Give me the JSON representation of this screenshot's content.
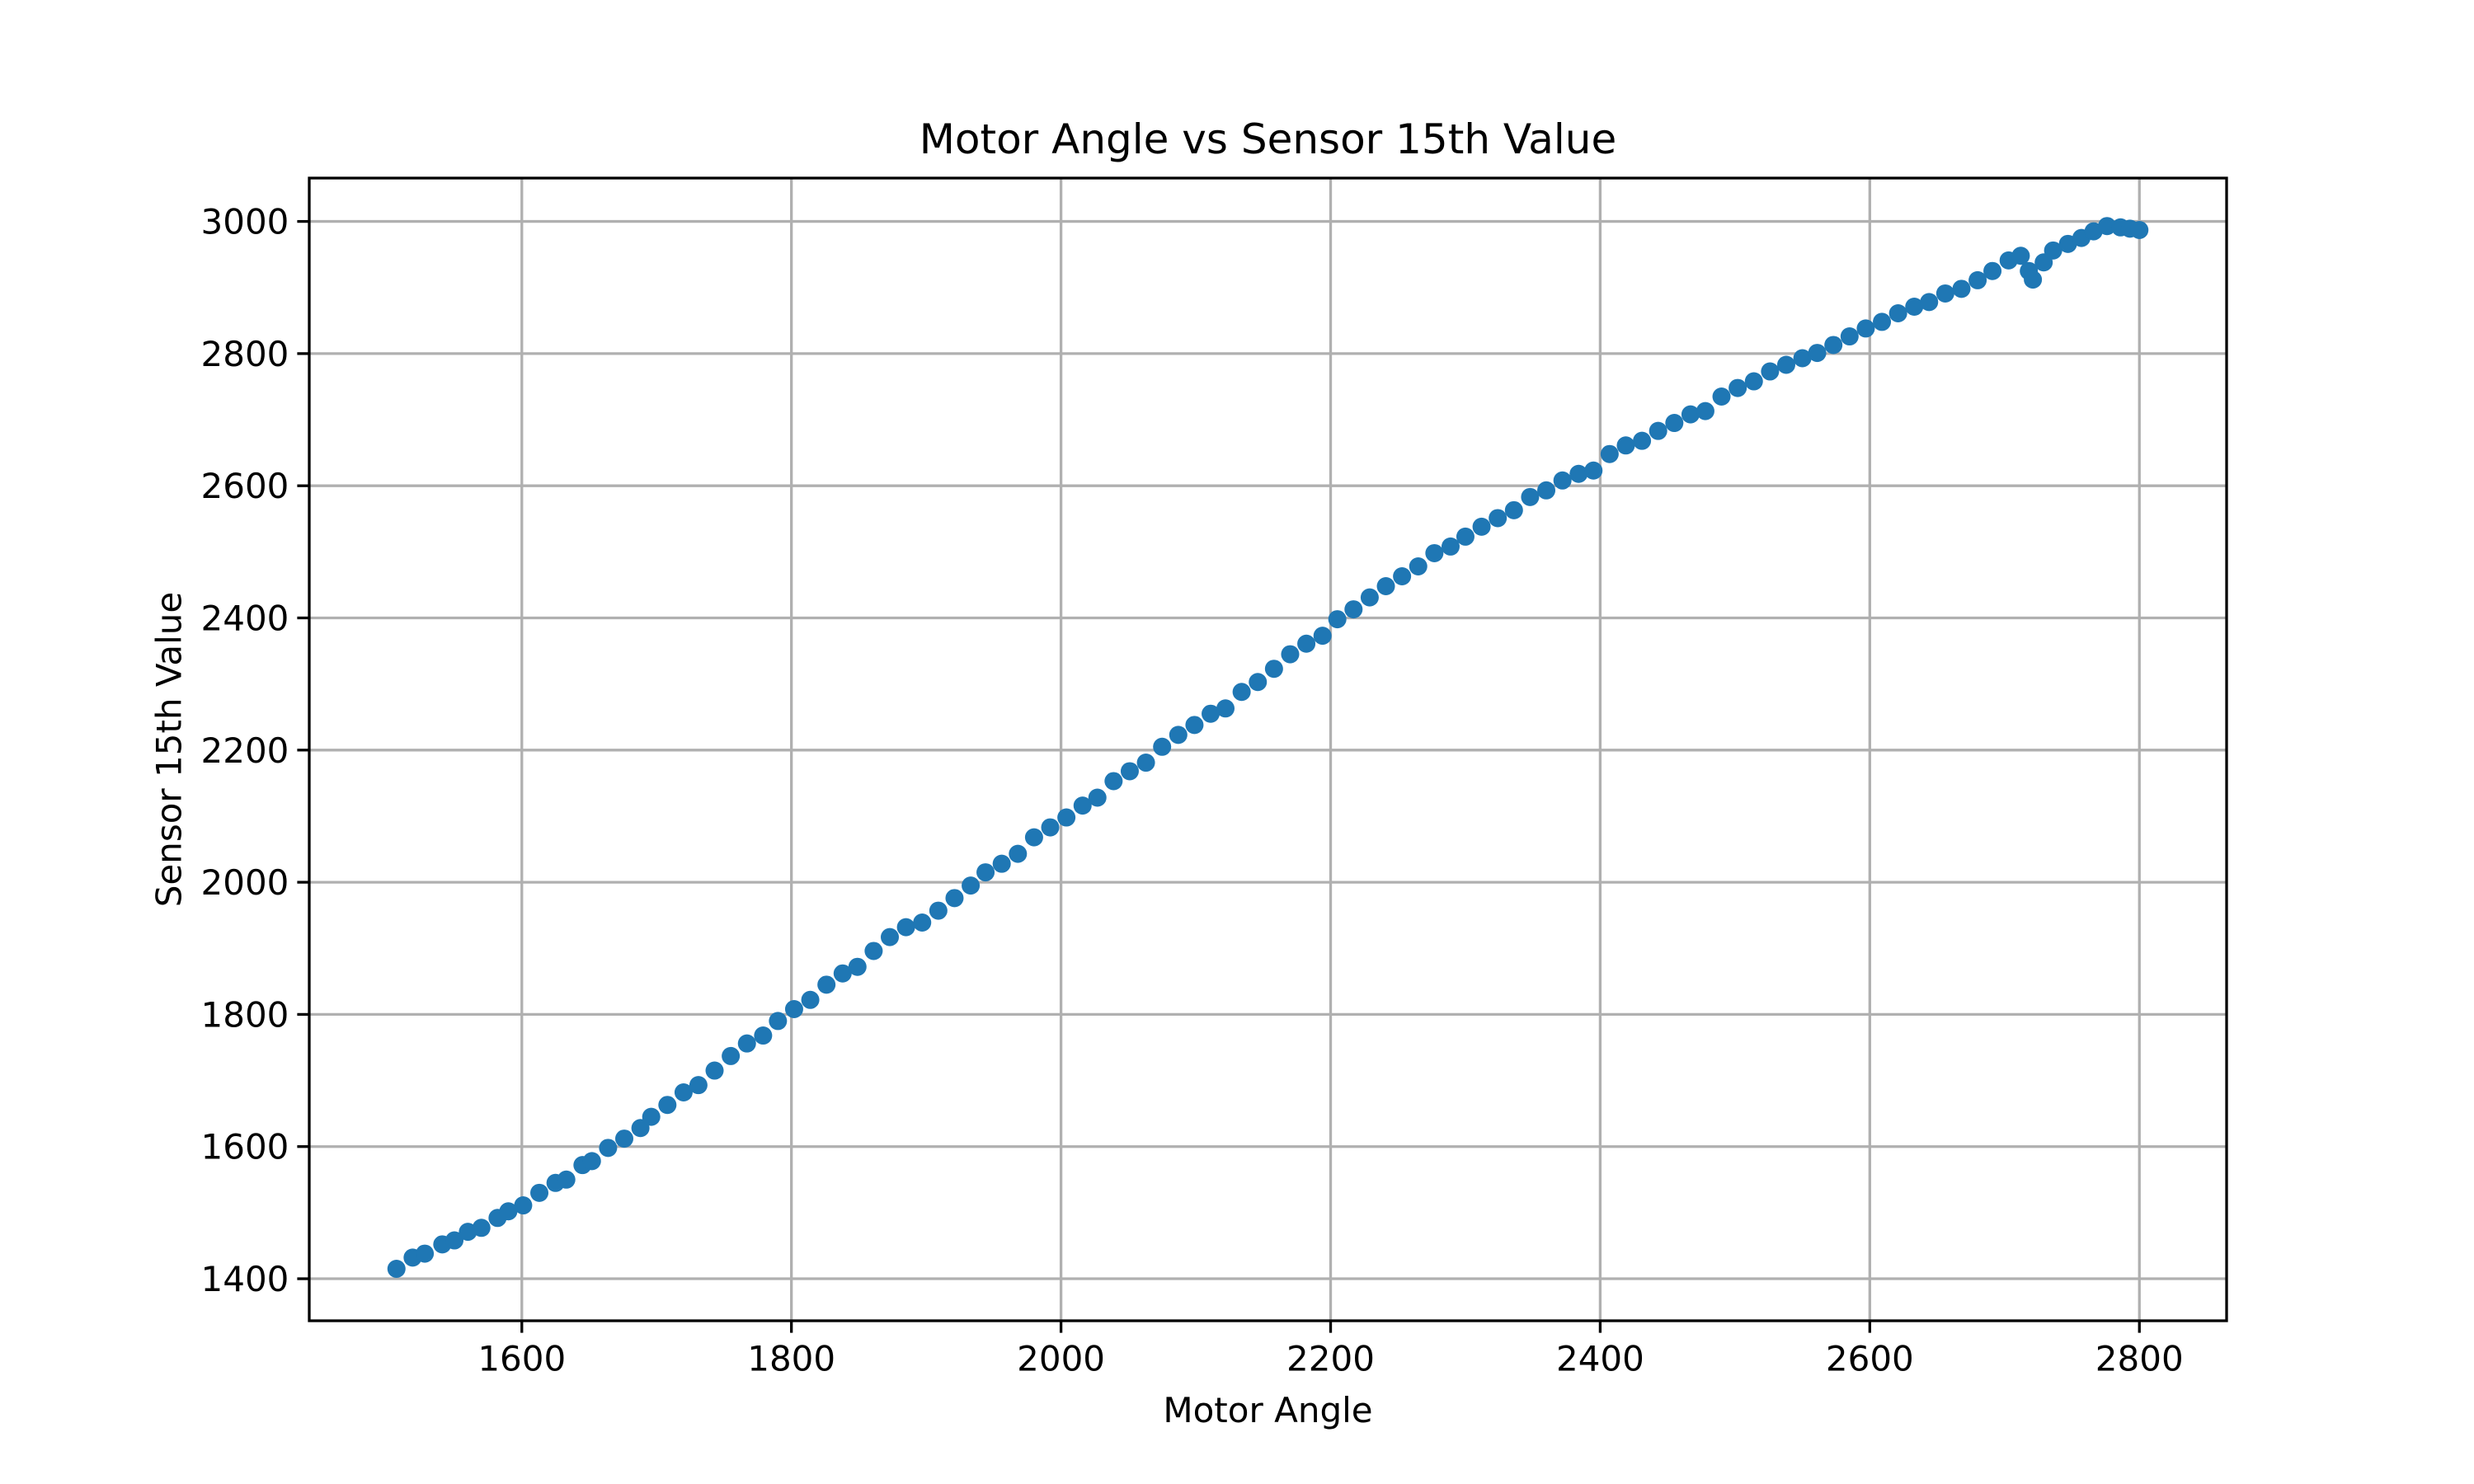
{
  "figure": {
    "background": "#ffffff"
  },
  "chart_data": {
    "type": "scatter",
    "title": "Motor Angle vs Sensor 15th Value",
    "xlabel": "Motor Angle",
    "ylabel": "Sensor 15th Value",
    "xlim": [
      1442.3,
      2864.7
    ],
    "ylim": [
      1336.4,
      3065.6
    ],
    "x_ticks": [
      1600,
      1800,
      2000,
      2200,
      2400,
      2600,
      2800
    ],
    "y_ticks": [
      1400,
      1600,
      1800,
      2000,
      2200,
      2400,
      2600,
      2800,
      3000
    ],
    "grid": true,
    "grid_color": "#b0b0b0",
    "axis_color": "#000000",
    "tick_label_fontsize_px": 42,
    "marker_color": "#1f77b4",
    "marker_radius_px": 11,
    "series_name": "sensor-15th-value-vs-motor-angle",
    "points": [
      [
        1507,
        1415
      ],
      [
        1519,
        1432
      ],
      [
        1528,
        1438
      ],
      [
        1541,
        1452
      ],
      [
        1550,
        1458
      ],
      [
        1560,
        1471
      ],
      [
        1570,
        1477
      ],
      [
        1582,
        1492
      ],
      [
        1590,
        1502
      ],
      [
        1601,
        1511
      ],
      [
        1613,
        1530
      ],
      [
        1625,
        1545
      ],
      [
        1633,
        1550
      ],
      [
        1645,
        1572
      ],
      [
        1652,
        1578
      ],
      [
        1664,
        1598
      ],
      [
        1676,
        1612
      ],
      [
        1688,
        1628
      ],
      [
        1696,
        1645
      ],
      [
        1708,
        1663
      ],
      [
        1720,
        1682
      ],
      [
        1731,
        1693
      ],
      [
        1743,
        1715
      ],
      [
        1755,
        1737
      ],
      [
        1767,
        1756
      ],
      [
        1779,
        1768
      ],
      [
        1790,
        1790
      ],
      [
        1802,
        1808
      ],
      [
        1814,
        1822
      ],
      [
        1826,
        1845
      ],
      [
        1838,
        1862
      ],
      [
        1849,
        1872
      ],
      [
        1861,
        1896
      ],
      [
        1873,
        1917
      ],
      [
        1885,
        1932
      ],
      [
        1897,
        1939
      ],
      [
        1909,
        1957
      ],
      [
        1921,
        1976
      ],
      [
        1933,
        1995
      ],
      [
        1944,
        2015
      ],
      [
        1956,
        2028
      ],
      [
        1968,
        2043
      ],
      [
        1980,
        2068
      ],
      [
        1992,
        2083
      ],
      [
        2004,
        2098
      ],
      [
        2016,
        2116
      ],
      [
        2027,
        2128
      ],
      [
        2039,
        2153
      ],
      [
        2051,
        2168
      ],
      [
        2063,
        2181
      ],
      [
        2075,
        2205
      ],
      [
        2087,
        2223
      ],
      [
        2099,
        2238
      ],
      [
        2111,
        2255
      ],
      [
        2122,
        2263
      ],
      [
        2134,
        2288
      ],
      [
        2146,
        2303
      ],
      [
        2158,
        2323
      ],
      [
        2170,
        2345
      ],
      [
        2182,
        2361
      ],
      [
        2194,
        2373
      ],
      [
        2205,
        2398
      ],
      [
        2217,
        2413
      ],
      [
        2229,
        2431
      ],
      [
        2241,
        2448
      ],
      [
        2253,
        2463
      ],
      [
        2265,
        2478
      ],
      [
        2277,
        2498
      ],
      [
        2289,
        2508
      ],
      [
        2300,
        2523
      ],
      [
        2312,
        2538
      ],
      [
        2324,
        2551
      ],
      [
        2336,
        2563
      ],
      [
        2348,
        2583
      ],
      [
        2360,
        2593
      ],
      [
        2372,
        2608
      ],
      [
        2384,
        2618
      ],
      [
        2395,
        2623
      ],
      [
        2407,
        2648
      ],
      [
        2419,
        2661
      ],
      [
        2431,
        2668
      ],
      [
        2443,
        2683
      ],
      [
        2455,
        2695
      ],
      [
        2467,
        2708
      ],
      [
        2478,
        2713
      ],
      [
        2490,
        2735
      ],
      [
        2502,
        2748
      ],
      [
        2514,
        2758
      ],
      [
        2526,
        2773
      ],
      [
        2538,
        2783
      ],
      [
        2550,
        2793
      ],
      [
        2561,
        2801
      ],
      [
        2573,
        2813
      ],
      [
        2585,
        2826
      ],
      [
        2597,
        2838
      ],
      [
        2609,
        2848
      ],
      [
        2621,
        2861
      ],
      [
        2633,
        2871
      ],
      [
        2644,
        2878
      ],
      [
        2656,
        2891
      ],
      [
        2668,
        2898
      ],
      [
        2680,
        2911
      ],
      [
        2691,
        2925
      ],
      [
        2703,
        2941
      ],
      [
        2712,
        2948
      ],
      [
        2718,
        2925
      ],
      [
        2721,
        2912
      ],
      [
        2729,
        2938
      ],
      [
        2736,
        2956
      ],
      [
        2747,
        2966
      ],
      [
        2757,
        2975
      ],
      [
        2766,
        2985
      ],
      [
        2776,
        2993
      ],
      [
        2786,
        2991
      ],
      [
        2793,
        2989
      ],
      [
        2800,
        2987
      ]
    ]
  }
}
